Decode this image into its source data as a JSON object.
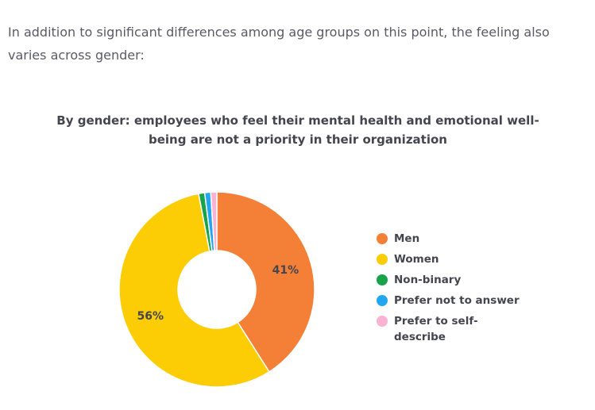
{
  "intro_text": "In addition to significant differences among age groups on this point, the feeling also varies across gender:",
  "chart_data": {
    "type": "pie",
    "donut": true,
    "title": "By gender: employees who feel their mental health and emotional well-being are not a priority in their organization",
    "title_display": "By gender: employees who feel their mental health and emotional well-\nbeing are not a priority in their organization",
    "categories": [
      "Men",
      "Women",
      "Non-binary",
      "Prefer not to answer",
      "Prefer to self-describe"
    ],
    "legend_labels": [
      "Men",
      "Women",
      "Non-binary",
      "Prefer not to answer",
      "Prefer to self-\ndescribe"
    ],
    "values": [
      41,
      56,
      1,
      1,
      1
    ],
    "data_labels": [
      "41%",
      "56%",
      "",
      "",
      ""
    ],
    "colors": [
      "#f47f36",
      "#fccd05",
      "#16a34a",
      "#21a6f2",
      "#f8b3d3"
    ],
    "legend_position": "right"
  }
}
